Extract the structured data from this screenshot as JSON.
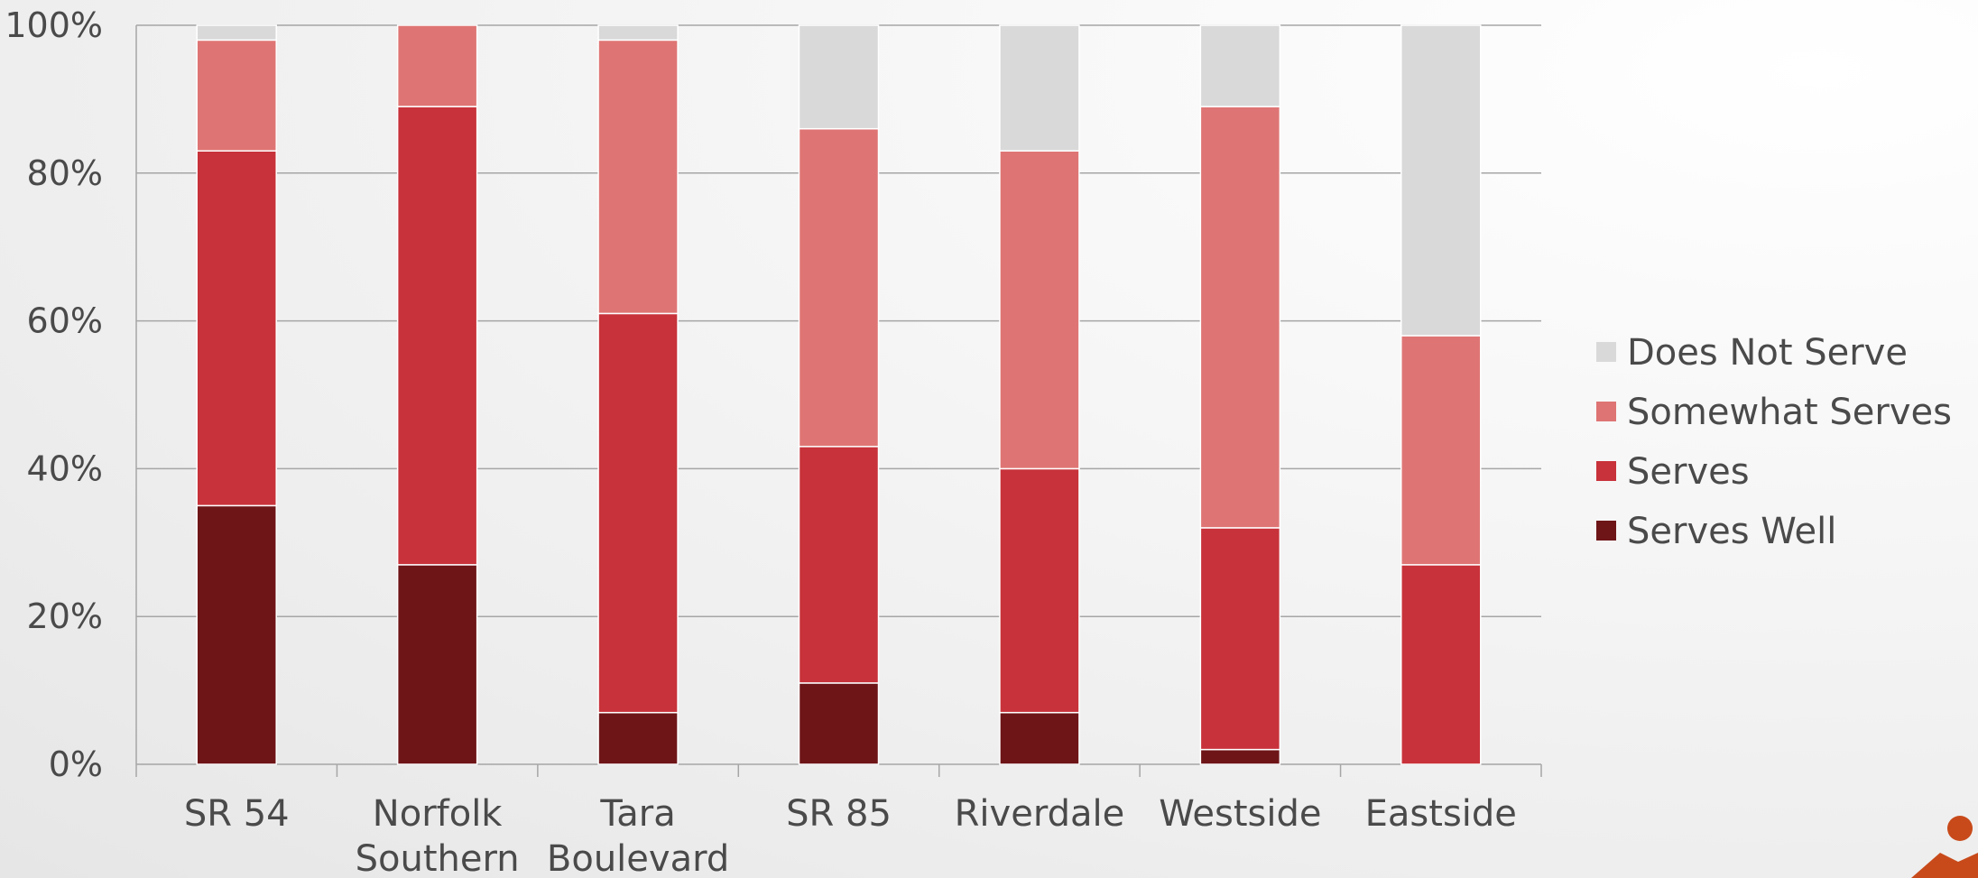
{
  "chart_data": {
    "type": "bar",
    "stacked": true,
    "percent": true,
    "categories": [
      [
        "SR 54"
      ],
      [
        "Norfolk",
        "Southern"
      ],
      [
        "Tara",
        "Boulevard"
      ],
      [
        "SR 85"
      ],
      [
        "Riverdale"
      ],
      [
        "Westside"
      ],
      [
        "Eastside"
      ]
    ],
    "series": [
      {
        "name": "Serves Well",
        "color": "#6e1518",
        "values": [
          35,
          27,
          7,
          11,
          7,
          2,
          0
        ]
      },
      {
        "name": "Serves",
        "color": "#c8323a",
        "values": [
          48,
          62,
          54,
          32,
          33,
          30,
          27
        ]
      },
      {
        "name": "Somewhat Serves",
        "color": "#de7574",
        "values": [
          15,
          11,
          37,
          43,
          43,
          57,
          31
        ]
      },
      {
        "name": "Does Not Serve",
        "color": "#d9d9d9",
        "values": [
          2,
          0,
          2,
          14,
          17,
          11,
          42
        ]
      }
    ],
    "ylim": [
      0,
      100
    ],
    "yticks": [
      0,
      20,
      40,
      60,
      80,
      100
    ],
    "ytick_labels": [
      "0%",
      "20%",
      "40%",
      "60%",
      "80%",
      "100%"
    ],
    "grid": true,
    "legend_position": "right",
    "title": "",
    "xlabel": "",
    "ylabel": ""
  },
  "legend_order": [
    "Does Not Serve",
    "Somewhat Serves",
    "Serves",
    "Serves Well"
  ],
  "gridline_color": "#a6a6a6"
}
